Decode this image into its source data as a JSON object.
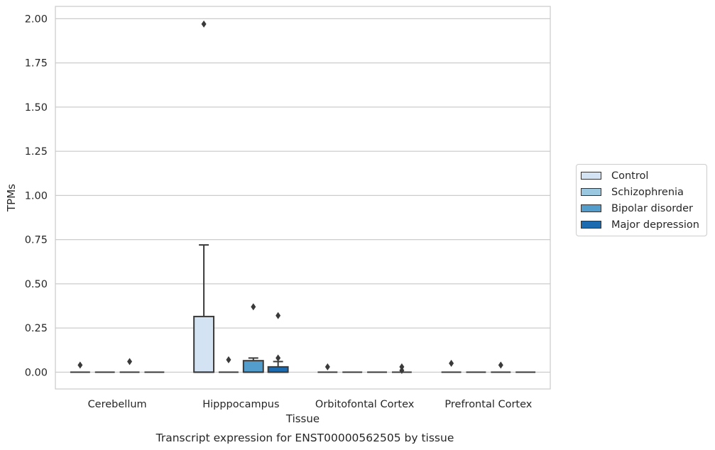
{
  "chart_data": {
    "type": "box",
    "xlabel": "Tissue",
    "ylabel": "TPMs",
    "caption": "Transcript expression for ENST00000562505 by tissue",
    "ylim": [
      -0.095,
      2.07
    ],
    "yticks": [
      "0.00",
      "0.25",
      "0.50",
      "0.75",
      "1.00",
      "1.25",
      "1.50",
      "1.75",
      "2.00"
    ],
    "ytick_values": [
      0,
      0.25,
      0.5,
      0.75,
      1.0,
      1.25,
      1.5,
      1.75,
      2.0
    ],
    "categories": [
      "Cerebellum",
      "Hipppocampus",
      "Orbitofontal Cortex",
      "Prefrontal Cortex"
    ],
    "grid": "horizontal",
    "legend_position": "right",
    "series": [
      {
        "name": "Control",
        "color": "#d3e3f3",
        "boxes": [
          {
            "q1": 0,
            "median": 0,
            "q3": 0,
            "whislo": 0,
            "whishi": 0,
            "fliers": [
              0.04
            ]
          },
          {
            "q1": 0,
            "median": 0,
            "q3": 0.315,
            "whislo": 0,
            "whishi": 0.72,
            "fliers": [
              1.97
            ]
          },
          {
            "q1": 0,
            "median": 0,
            "q3": 0,
            "whislo": 0,
            "whishi": 0,
            "fliers": [
              0.03
            ]
          },
          {
            "q1": 0,
            "median": 0,
            "q3": 0,
            "whislo": 0,
            "whishi": 0,
            "fliers": [
              0.05
            ]
          }
        ]
      },
      {
        "name": "Schizophrenia",
        "color": "#9ac8e0",
        "boxes": [
          {
            "q1": 0,
            "median": 0,
            "q3": 0,
            "whislo": 0,
            "whishi": 0,
            "fliers": []
          },
          {
            "q1": 0,
            "median": 0,
            "q3": 0,
            "whislo": 0,
            "whishi": 0,
            "fliers": [
              0.07
            ]
          },
          {
            "q1": 0,
            "median": 0,
            "q3": 0,
            "whislo": 0,
            "whishi": 0,
            "fliers": []
          },
          {
            "q1": 0,
            "median": 0,
            "q3": 0,
            "whislo": 0,
            "whishi": 0,
            "fliers": []
          }
        ]
      },
      {
        "name": "Bipolar disorder",
        "color": "#529dcc",
        "boxes": [
          {
            "q1": 0,
            "median": 0,
            "q3": 0,
            "whislo": 0,
            "whishi": 0,
            "fliers": [
              0.06
            ]
          },
          {
            "q1": 0,
            "median": 0,
            "q3": 0.065,
            "whislo": 0,
            "whishi": 0.08,
            "fliers": [
              0.37
            ]
          },
          {
            "q1": 0,
            "median": 0,
            "q3": 0,
            "whislo": 0,
            "whishi": 0,
            "fliers": []
          },
          {
            "q1": 0,
            "median": 0,
            "q3": 0,
            "whislo": 0,
            "whishi": 0,
            "fliers": [
              0.04
            ]
          }
        ]
      },
      {
        "name": "Major depression",
        "color": "#1c6aaf",
        "boxes": [
          {
            "q1": 0,
            "median": 0,
            "q3": 0,
            "whislo": 0,
            "whishi": 0,
            "fliers": []
          },
          {
            "q1": 0,
            "median": 0,
            "q3": 0.03,
            "whislo": 0,
            "whishi": 0.06,
            "fliers": [
              0.32,
              0.08
            ]
          },
          {
            "q1": 0,
            "median": 0,
            "q3": 0,
            "whislo": 0,
            "whishi": 0,
            "fliers": [
              0.03,
              0.01
            ]
          },
          {
            "q1": 0,
            "median": 0,
            "q3": 0,
            "whislo": 0,
            "whishi": 0,
            "fliers": []
          }
        ]
      }
    ]
  }
}
